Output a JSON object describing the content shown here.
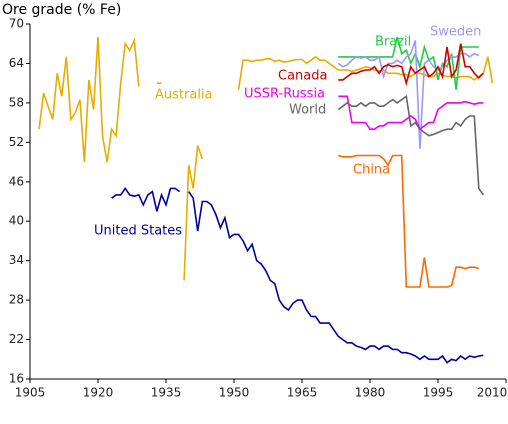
{
  "chart_data": {
    "type": "line",
    "y_label": "Ore grade (% Fe)",
    "xlim": [
      1905,
      2010
    ],
    "xticks": [
      1905,
      1920,
      1935,
      1950,
      1965,
      1980,
      1995,
      2010
    ],
    "ylim": [
      16,
      70
    ],
    "yticks": [
      16,
      22,
      28,
      34,
      40,
      46,
      52,
      58,
      64,
      70
    ],
    "series": [
      {
        "name": "Australia",
        "color": "#e6ac00",
        "x": [
          1907,
          1908,
          1909,
          1910,
          1911,
          1912,
          1913,
          1914,
          1915,
          1916,
          1917,
          1918,
          1919,
          1920,
          1921,
          1922,
          1923,
          1924,
          1925,
          1926,
          1927,
          1928,
          1929,
          1930,
          1933,
          1934,
          1935,
          1939,
          1940,
          1941,
          1942,
          1943,
          1944,
          1951,
          1952,
          1953,
          1954,
          1955,
          1956,
          1957,
          1958,
          1959,
          1960,
          1961,
          1962,
          1963,
          1964,
          1965,
          1966,
          1967,
          1968,
          1969,
          1970,
          1971,
          1972,
          1973,
          1974,
          1975,
          1976,
          1977,
          1978,
          1979,
          1980,
          1981,
          1982,
          1983,
          1984,
          1985,
          1986,
          1987,
          1988,
          1989,
          1990,
          1991,
          1992,
          1993,
          1994,
          1995,
          1996,
          1997,
          1998,
          1999,
          2000,
          2001,
          2002,
          2003,
          2004,
          2005,
          2006,
          2007
        ],
        "values": [
          54,
          59.5,
          57.5,
          55.5,
          62.5,
          59,
          65,
          55.5,
          56.5,
          58.5,
          49,
          61.5,
          57,
          68,
          53,
          49,
          54,
          53,
          61,
          67,
          66,
          67.5,
          60.5,
          null,
          61,
          61,
          null,
          31,
          48.5,
          45,
          51.5,
          49.5,
          null,
          60,
          64.5,
          64.5,
          64.3,
          64.5,
          64.5,
          64.7,
          64.7,
          64.3,
          64.5,
          64.2,
          64.3,
          64.5,
          64.6,
          64.6,
          64,
          64.5,
          65,
          64.5,
          64.5,
          64,
          63.5,
          63,
          63,
          63,
          62.8,
          63,
          63.2,
          63.5,
          63.3,
          63,
          62.8,
          63,
          62.5,
          62.5,
          62.5,
          62.3,
          62.3,
          62,
          62.5,
          62.5,
          62.3,
          62,
          62,
          62.5,
          62.2,
          62,
          62,
          61.8,
          62,
          62,
          62,
          61.5,
          62,
          62.5,
          65,
          61
        ]
      },
      {
        "name": "United States",
        "color": "#0000a0",
        "x": [
          1923,
          1924,
          1925,
          1926,
          1927,
          1928,
          1929,
          1930,
          1931,
          1932,
          1933,
          1934,
          1935,
          1936,
          1937,
          1938,
          1939,
          1940,
          1941,
          1942,
          1943,
          1944,
          1945,
          1946,
          1947,
          1948,
          1949,
          1950,
          1951,
          1952,
          1953,
          1954,
          1955,
          1956,
          1957,
          1958,
          1959,
          1960,
          1961,
          1962,
          1963,
          1964,
          1965,
          1966,
          1967,
          1968,
          1969,
          1970,
          1971,
          1972,
          1973,
          1974,
          1975,
          1976,
          1977,
          1978,
          1979,
          1980,
          1981,
          1982,
          1983,
          1984,
          1985,
          1986,
          1987,
          1988,
          1989,
          1990,
          1991,
          1992,
          1993,
          1994,
          1995,
          1996,
          1997,
          1998,
          1999,
          2000,
          2001,
          2002,
          2003,
          2004,
          2005
        ],
        "values": [
          43.5,
          44,
          44,
          45,
          44,
          43.8,
          44,
          42.5,
          44,
          44.5,
          41.5,
          44,
          42.5,
          45,
          45,
          44.5,
          null,
          44.5,
          43.5,
          38.5,
          43,
          43,
          42.5,
          41,
          39,
          40.5,
          37.5,
          38,
          38,
          37,
          35.5,
          36.5,
          34,
          33.5,
          32.5,
          31,
          30.5,
          28,
          27,
          26.5,
          27.5,
          28,
          28,
          26.5,
          25.5,
          25.5,
          24.5,
          24.5,
          24.5,
          23.5,
          22.5,
          22,
          21.5,
          21.5,
          21,
          20.8,
          20.5,
          21,
          21,
          20.5,
          21,
          21,
          20.5,
          20.5,
          20,
          20,
          19.8,
          19.5,
          19,
          19.5,
          19,
          19,
          19,
          19.5,
          18.5,
          19,
          18.8,
          19.5,
          19,
          19.5,
          19.3,
          19.5,
          19.6
        ]
      },
      {
        "name": "Brazil",
        "color": "#22cc44",
        "x": [
          1973,
          1974,
          1975,
          1976,
          1977,
          1978,
          1979,
          1980,
          1981,
          1982,
          1983,
          1984,
          1985,
          1986,
          1987,
          1988,
          1989,
          1990,
          1991,
          1992,
          1993,
          1994,
          1995,
          1996,
          1997,
          1998,
          1999,
          2000,
          2001,
          2002,
          2003,
          2004
        ],
        "values": [
          65,
          65,
          65,
          65,
          65,
          65,
          65,
          65,
          65,
          65,
          65,
          65,
          65,
          68,
          65.5,
          66,
          64,
          65.5,
          63.5,
          66.5,
          64.5,
          65,
          61.5,
          64,
          63.5,
          65.5,
          60,
          66.5,
          66.5,
          66.5,
          66.5,
          66.5
        ]
      },
      {
        "name": "Sweden",
        "color": "#9999ff",
        "x": [
          1973,
          1974,
          1975,
          1976,
          1977,
          1978,
          1979,
          1980,
          1981,
          1982,
          1983,
          1984,
          1985,
          1986,
          1987,
          1988,
          1989,
          1990,
          1991,
          1992,
          1993,
          1994,
          1995,
          1996,
          1997,
          1998,
          1999,
          2000,
          2001,
          2002,
          2003,
          2004
        ],
        "values": [
          64,
          63.5,
          63.8,
          64.5,
          65,
          64.8,
          65,
          64.5,
          64.5,
          65,
          62,
          64,
          64,
          64.5,
          64,
          65,
          65.5,
          67.5,
          51,
          64,
          64.5,
          63.5,
          63,
          63.5,
          64.5,
          65,
          65,
          65.5,
          65.5,
          65,
          65.5,
          65.2
        ]
      },
      {
        "name": "Canada",
        "color": "#cc0000",
        "x": [
          1973,
          1974,
          1975,
          1976,
          1977,
          1978,
          1979,
          1980,
          1981,
          1982,
          1983,
          1984,
          1985,
          1986,
          1987,
          1988,
          1989,
          1990,
          1991,
          1992,
          1993,
          1994,
          1995,
          1996,
          1997,
          1998,
          1999,
          2000,
          2001,
          2002,
          2003,
          2004,
          2005
        ],
        "values": [
          61.5,
          61.5,
          62,
          62.5,
          62.5,
          62.8,
          63,
          63,
          63.5,
          62.5,
          63.5,
          63.8,
          63.5,
          63.7,
          63.5,
          61,
          63.5,
          62.5,
          63,
          63.5,
          62,
          62.5,
          63.5,
          62,
          66.5,
          62,
          63,
          67,
          63.5,
          63.5,
          62.5,
          61.8,
          62.5
        ]
      },
      {
        "name": "USSR-Russia",
        "color": "#ee00ee",
        "x": [
          1973,
          1974,
          1975,
          1976,
          1977,
          1978,
          1979,
          1980,
          1981,
          1982,
          1983,
          1984,
          1985,
          1986,
          1987,
          1988,
          1989,
          1990,
          1991,
          1992,
          1993,
          1994,
          1995,
          1996,
          1997,
          1998,
          1999,
          2000,
          2001,
          2002,
          2003,
          2004,
          2005
        ],
        "values": [
          59,
          59,
          59,
          55,
          55,
          55,
          55,
          54,
          54,
          54.5,
          54.5,
          55,
          55,
          55,
          55,
          55.5,
          56,
          55.5,
          54,
          54.5,
          55,
          55,
          57,
          57.5,
          58,
          58,
          58,
          58,
          58.2,
          58,
          57.8,
          58,
          58
        ]
      },
      {
        "name": "World",
        "color": "#666666",
        "x": [
          1973,
          1974,
          1975,
          1976,
          1977,
          1978,
          1979,
          1980,
          1981,
          1982,
          1983,
          1984,
          1985,
          1986,
          1987,
          1988,
          1989,
          1990,
          1991,
          1992,
          1993,
          1994,
          1995,
          1996,
          1997,
          1998,
          1999,
          2000,
          2001,
          2002,
          2003,
          2004,
          2005
        ],
        "values": [
          57,
          57.5,
          58,
          57.5,
          57.5,
          58,
          57.5,
          58,
          58,
          57.5,
          57.5,
          58,
          58.5,
          58,
          58.5,
          59,
          54.5,
          55,
          54,
          53.5,
          53,
          53.2,
          53.5,
          53.8,
          54,
          54,
          55,
          54.5,
          55.5,
          56,
          56,
          45,
          44
        ]
      },
      {
        "name": "China",
        "color": "#ff6600",
        "x": [
          1973,
          1974,
          1975,
          1976,
          1977,
          1978,
          1979,
          1980,
          1981,
          1982,
          1983,
          1984,
          1985,
          1986,
          1987,
          1988,
          1989,
          1990,
          1991,
          1992,
          1993,
          1994,
          1995,
          1996,
          1997,
          1998,
          1999,
          2000,
          2001,
          2002,
          2003,
          2004
        ],
        "values": [
          50,
          49.8,
          49.8,
          49.8,
          50,
          50,
          50,
          50,
          50,
          50,
          49.5,
          48.5,
          50,
          50,
          50,
          30,
          30,
          30,
          30,
          34.5,
          30,
          30,
          30,
          30,
          30,
          30.2,
          33,
          33,
          32.8,
          33,
          33,
          32.8
        ]
      }
    ]
  }
}
